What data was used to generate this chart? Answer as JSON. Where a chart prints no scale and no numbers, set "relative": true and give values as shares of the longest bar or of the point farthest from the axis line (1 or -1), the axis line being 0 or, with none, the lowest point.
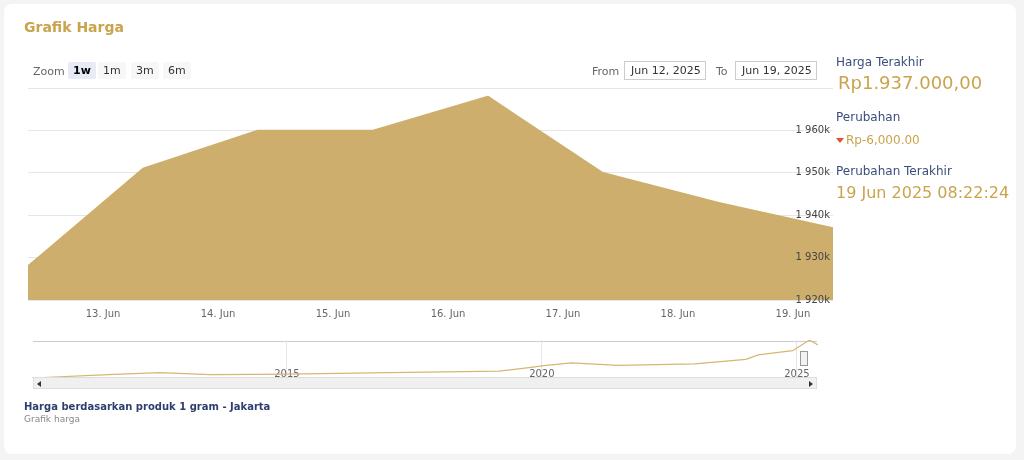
{
  "chart_data": [
    {
      "type": "area",
      "title": "Grafik Harga",
      "x": [
        "2025-06-12T08:20",
        "2025-06-13T08:20",
        "2025-06-14T08:20",
        "2025-06-15T08:20",
        "2025-06-16T08:20",
        "2025-06-17T08:20",
        "2025-06-18T08:20",
        "2025-06-19T08:22"
      ],
      "series": [
        {
          "color": "#cdae6c",
          "values": [
            1928000,
            1951000,
            1960000,
            1960000,
            1968000,
            1950000,
            1943000,
            1937000
          ]
        }
      ],
      "xlim": [
        "2025-06-12T08:20",
        "2025-06-19T08:22"
      ],
      "xticks": [
        {
          "value": "2025-06-13T00:00",
          "label": "13. Jun"
        },
        {
          "value": "2025-06-14T00:00",
          "label": "14. Jun"
        },
        {
          "value": "2025-06-15T00:00",
          "label": "15. Jun"
        },
        {
          "value": "2025-06-16T00:00",
          "label": "16. Jun"
        },
        {
          "value": "2025-06-17T00:00",
          "label": "17. Jun"
        },
        {
          "value": "2025-06-18T00:00",
          "label": "18. Jun"
        },
        {
          "value": "2025-06-19T00:00",
          "label": "19. Jun"
        }
      ],
      "ylim": [
        1920000,
        1970000
      ],
      "yticks": [
        {
          "value": 1920000,
          "label": "1 920k"
        },
        {
          "value": 1930000,
          "label": "1 930k"
        },
        {
          "value": 1940000,
          "label": "1 940k"
        },
        {
          "value": 1950000,
          "label": "1 950k"
        },
        {
          "value": 1960000,
          "label": "1 960k"
        },
        {
          "value": 1970000,
          "label": null
        }
      ],
      "grid": "y",
      "legend": false,
      "annotations": [
        "Zoom",
        "1w",
        "1m",
        "3m",
        "6m",
        "From",
        "Jun 12, 2025",
        "To",
        "Jun 19, 2025",
        "Harga Terakhir",
        "Rp1.937.000,00",
        "Perubahan",
        "Rp-6,000.00",
        "Perubahan Terakhir",
        "19 Jun 2025 08:22:24",
        "Harga berdasarkan produk 1 gram - Jakarta",
        "Grafik harga"
      ]
    },
    {
      "type": "line",
      "relative": true,
      "x": [
        "2010-01",
        "2011-07",
        "2012-07",
        "2013-07",
        "2015-01",
        "2017-01",
        "2019-03",
        "2019-09",
        "2020-02",
        "2020-08",
        "2021-07",
        "2023-01",
        "2024-01",
        "2024-04",
        "2024-12",
        "2025-04",
        "2025-06"
      ],
      "series": [
        {
          "color": "#d4b872",
          "values": [
            0,
            0.09,
            0.14,
            0.09,
            0.1,
            0.14,
            0.18,
            0.26,
            0.33,
            0.4,
            0.33,
            0.37,
            0.49,
            0.61,
            0.72,
            1,
            0.87
          ]
        }
      ],
      "xlim": [
        "2010-01",
        "2025-06"
      ],
      "xticks": [
        {
          "value": "2015",
          "label": "2015"
        },
        {
          "value": "2020",
          "label": "2020"
        },
        {
          "value": "2025",
          "label": "2025"
        }
      ],
      "grid": "x",
      "legend": false
    }
  ]
}
